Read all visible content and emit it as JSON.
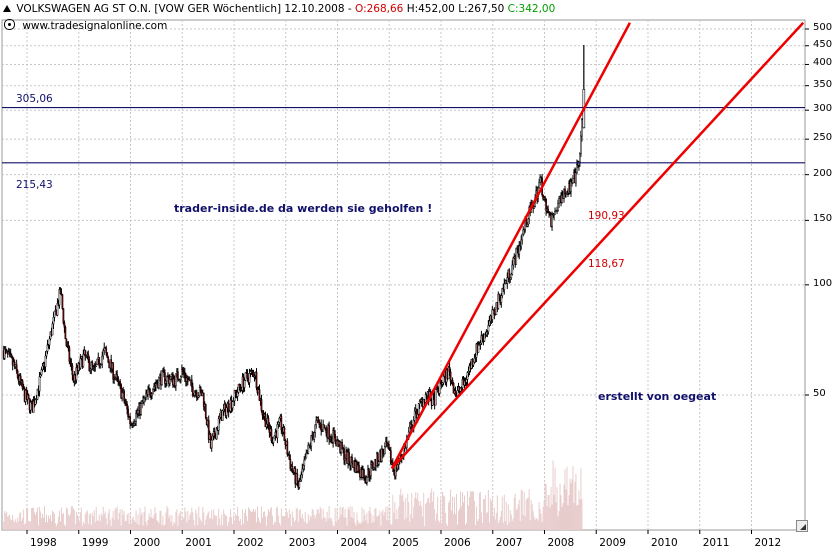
{
  "header": {
    "symbol_name": "VOLKSWAGEN AG ST O.N. [VOW GER  Wöchentlich] 12.10.2008 - ",
    "open": "O:268,66",
    "hlv": " H:452,00 L:267,50 ",
    "close": "C:342,00",
    "source": "www.tradesignalonline.com"
  },
  "annotations": {
    "level_high": "305,06",
    "level_low": "215,43",
    "trend_steep": "190,93",
    "trend_shallow": "118,67",
    "note_main": "trader-inside.de da werden sie geholfen !",
    "note_author": "erstellt von oegeat"
  },
  "colors": {
    "candle_up": "#ffffff",
    "candle_down": "#8b0000",
    "candle_outline": "#000000",
    "trendline": "#ee0000",
    "hline": "#10106a",
    "grid": "#c8c8c8",
    "volume": "#e8cccc"
  },
  "chart_data": {
    "type": "candlestick",
    "title": "VOLKSWAGEN AG ST O.N. [VOW GER Wöchentlich] 12.10.2008",
    "ohlc_last": {
      "open": 268.66,
      "high": 452.0,
      "low": 267.5,
      "close": 342.0
    },
    "y_scale": "log",
    "ylim": [
      24,
      520
    ],
    "yticks": [
      50,
      100,
      150,
      200,
      250,
      300,
      350,
      400,
      450,
      500
    ],
    "ytick_labels": [
      "50",
      "100",
      "150",
      "200",
      "250",
      "300",
      "350",
      "400",
      "450",
      "500"
    ],
    "xlim": [
      1997.55,
      2013.0
    ],
    "xticks": [
      "1998",
      "1999",
      "2000",
      "2001",
      "2002",
      "2003",
      "2004",
      "2005",
      "2006",
      "2007",
      "2008",
      "2009",
      "2010",
      "2011",
      "2012"
    ],
    "grid": true,
    "price_path": [
      [
        1997.55,
        66
      ],
      [
        1997.75,
        60
      ],
      [
        1997.95,
        50
      ],
      [
        1998.1,
        46
      ],
      [
        1998.3,
        58
      ],
      [
        1998.5,
        78
      ],
      [
        1998.65,
        96
      ],
      [
        1998.75,
        70
      ],
      [
        1998.9,
        55
      ],
      [
        1999.1,
        64
      ],
      [
        1999.3,
        58
      ],
      [
        1999.5,
        66
      ],
      [
        1999.7,
        56
      ],
      [
        1999.85,
        50
      ],
      [
        2000.0,
        42
      ],
      [
        2000.15,
        45
      ],
      [
        2000.4,
        52
      ],
      [
        2000.6,
        56
      ],
      [
        2000.85,
        55
      ],
      [
        2001.0,
        58
      ],
      [
        2001.2,
        52
      ],
      [
        2001.4,
        50
      ],
      [
        2001.55,
        36
      ],
      [
        2001.75,
        44
      ],
      [
        2001.95,
        48
      ],
      [
        2002.2,
        55
      ],
      [
        2002.4,
        58
      ],
      [
        2002.55,
        45
      ],
      [
        2002.75,
        38
      ],
      [
        2002.9,
        42
      ],
      [
        2003.1,
        32
      ],
      [
        2003.25,
        28
      ],
      [
        2003.45,
        36
      ],
      [
        2003.6,
        42
      ],
      [
        2003.8,
        40
      ],
      [
        2003.95,
        38
      ],
      [
        2004.15,
        34
      ],
      [
        2004.35,
        32
      ],
      [
        2004.55,
        30
      ],
      [
        2004.75,
        33
      ],
      [
        2004.95,
        36
      ],
      [
        2005.1,
        31
      ],
      [
        2005.3,
        36
      ],
      [
        2005.5,
        44
      ],
      [
        2005.7,
        50
      ],
      [
        2005.85,
        48
      ],
      [
        2006.0,
        54
      ],
      [
        2006.15,
        58
      ],
      [
        2006.3,
        50
      ],
      [
        2006.45,
        54
      ],
      [
        2006.6,
        62
      ],
      [
        2006.75,
        70
      ],
      [
        2006.9,
        76
      ],
      [
        2007.05,
        86
      ],
      [
        2007.2,
        98
      ],
      [
        2007.35,
        110
      ],
      [
        2007.5,
        126
      ],
      [
        2007.65,
        150
      ],
      [
        2007.8,
        168
      ],
      [
        2007.92,
        194
      ],
      [
        2008.02,
        165
      ],
      [
        2008.12,
        150
      ],
      [
        2008.22,
        160
      ],
      [
        2008.35,
        180
      ],
      [
        2008.5,
        185
      ],
      [
        2008.6,
        198
      ],
      [
        2008.68,
        220
      ],
      [
        2008.74,
        300
      ],
      [
        2008.78,
        342
      ]
    ],
    "spike": {
      "x": 2008.76,
      "low": 267.5,
      "high": 452.0
    },
    "hlines": [
      {
        "label": "305,06",
        "value": 305.06
      },
      {
        "label": "215,43",
        "value": 215.43
      }
    ],
    "trendlines": [
      {
        "label": "190,93",
        "from": [
          2005.05,
          31.5
        ],
        "to": [
          2009.65,
          520
        ]
      },
      {
        "label": "118,67",
        "from": [
          2005.05,
          31.5
        ],
        "to": [
          2013.0,
          520
        ]
      }
    ],
    "volume": true
  },
  "axis": {
    "y": [
      "500",
      "450",
      "400",
      "350",
      "300",
      "250",
      "200",
      "150",
      "100",
      "50"
    ],
    "x": [
      "1998",
      "1999",
      "2000",
      "2001",
      "2002",
      "2003",
      "2004",
      "2005",
      "2006",
      "2007",
      "2008",
      "2009",
      "2010",
      "2011",
      "2012"
    ]
  }
}
